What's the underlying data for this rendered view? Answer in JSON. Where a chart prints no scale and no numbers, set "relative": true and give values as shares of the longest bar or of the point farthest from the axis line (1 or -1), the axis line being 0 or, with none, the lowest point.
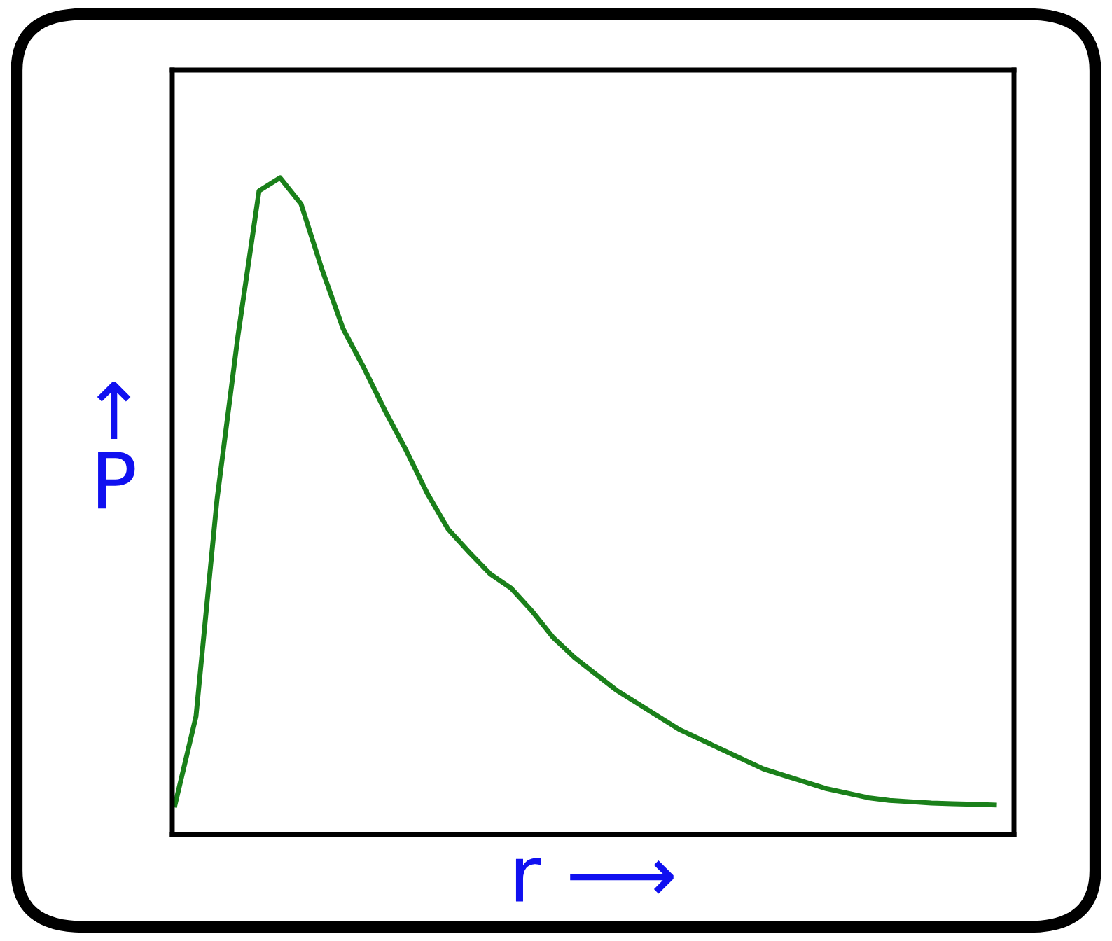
{
  "chart_data": {
    "type": "line",
    "relative": true,
    "xlabel": "r ⟶",
    "ylabel": "↑\nP",
    "legend": false,
    "marker": "none",
    "line_style": "solid",
    "tick_labels": false,
    "categories": [
      null,
      null,
      null,
      null,
      null,
      null,
      null,
      null,
      null,
      null,
      null,
      null,
      null,
      null,
      null,
      null,
      null,
      null,
      null,
      null,
      null,
      null,
      null,
      null,
      null,
      null,
      null,
      null,
      null,
      null,
      null,
      null,
      null,
      null,
      null,
      null,
      null,
      null,
      null,
      null
    ],
    "series": [
      {
        "color": "#1a801a",
        "values": [
          0.045,
          0.18,
          0.51,
          0.76,
          0.98,
          1.0,
          0.96,
          0.86,
          0.77,
          0.71,
          0.645,
          0.585,
          0.52,
          0.465,
          0.43,
          0.397,
          0.375,
          0.34,
          0.3,
          0.27,
          0.245,
          0.22,
          0.2,
          0.18,
          0.16,
          0.145,
          0.13,
          0.115,
          0.1,
          0.09,
          0.08,
          0.07,
          0.063,
          0.056,
          0.052,
          0.05,
          0.048,
          0.047,
          0.046,
          0.045
        ]
      }
    ]
  }
}
